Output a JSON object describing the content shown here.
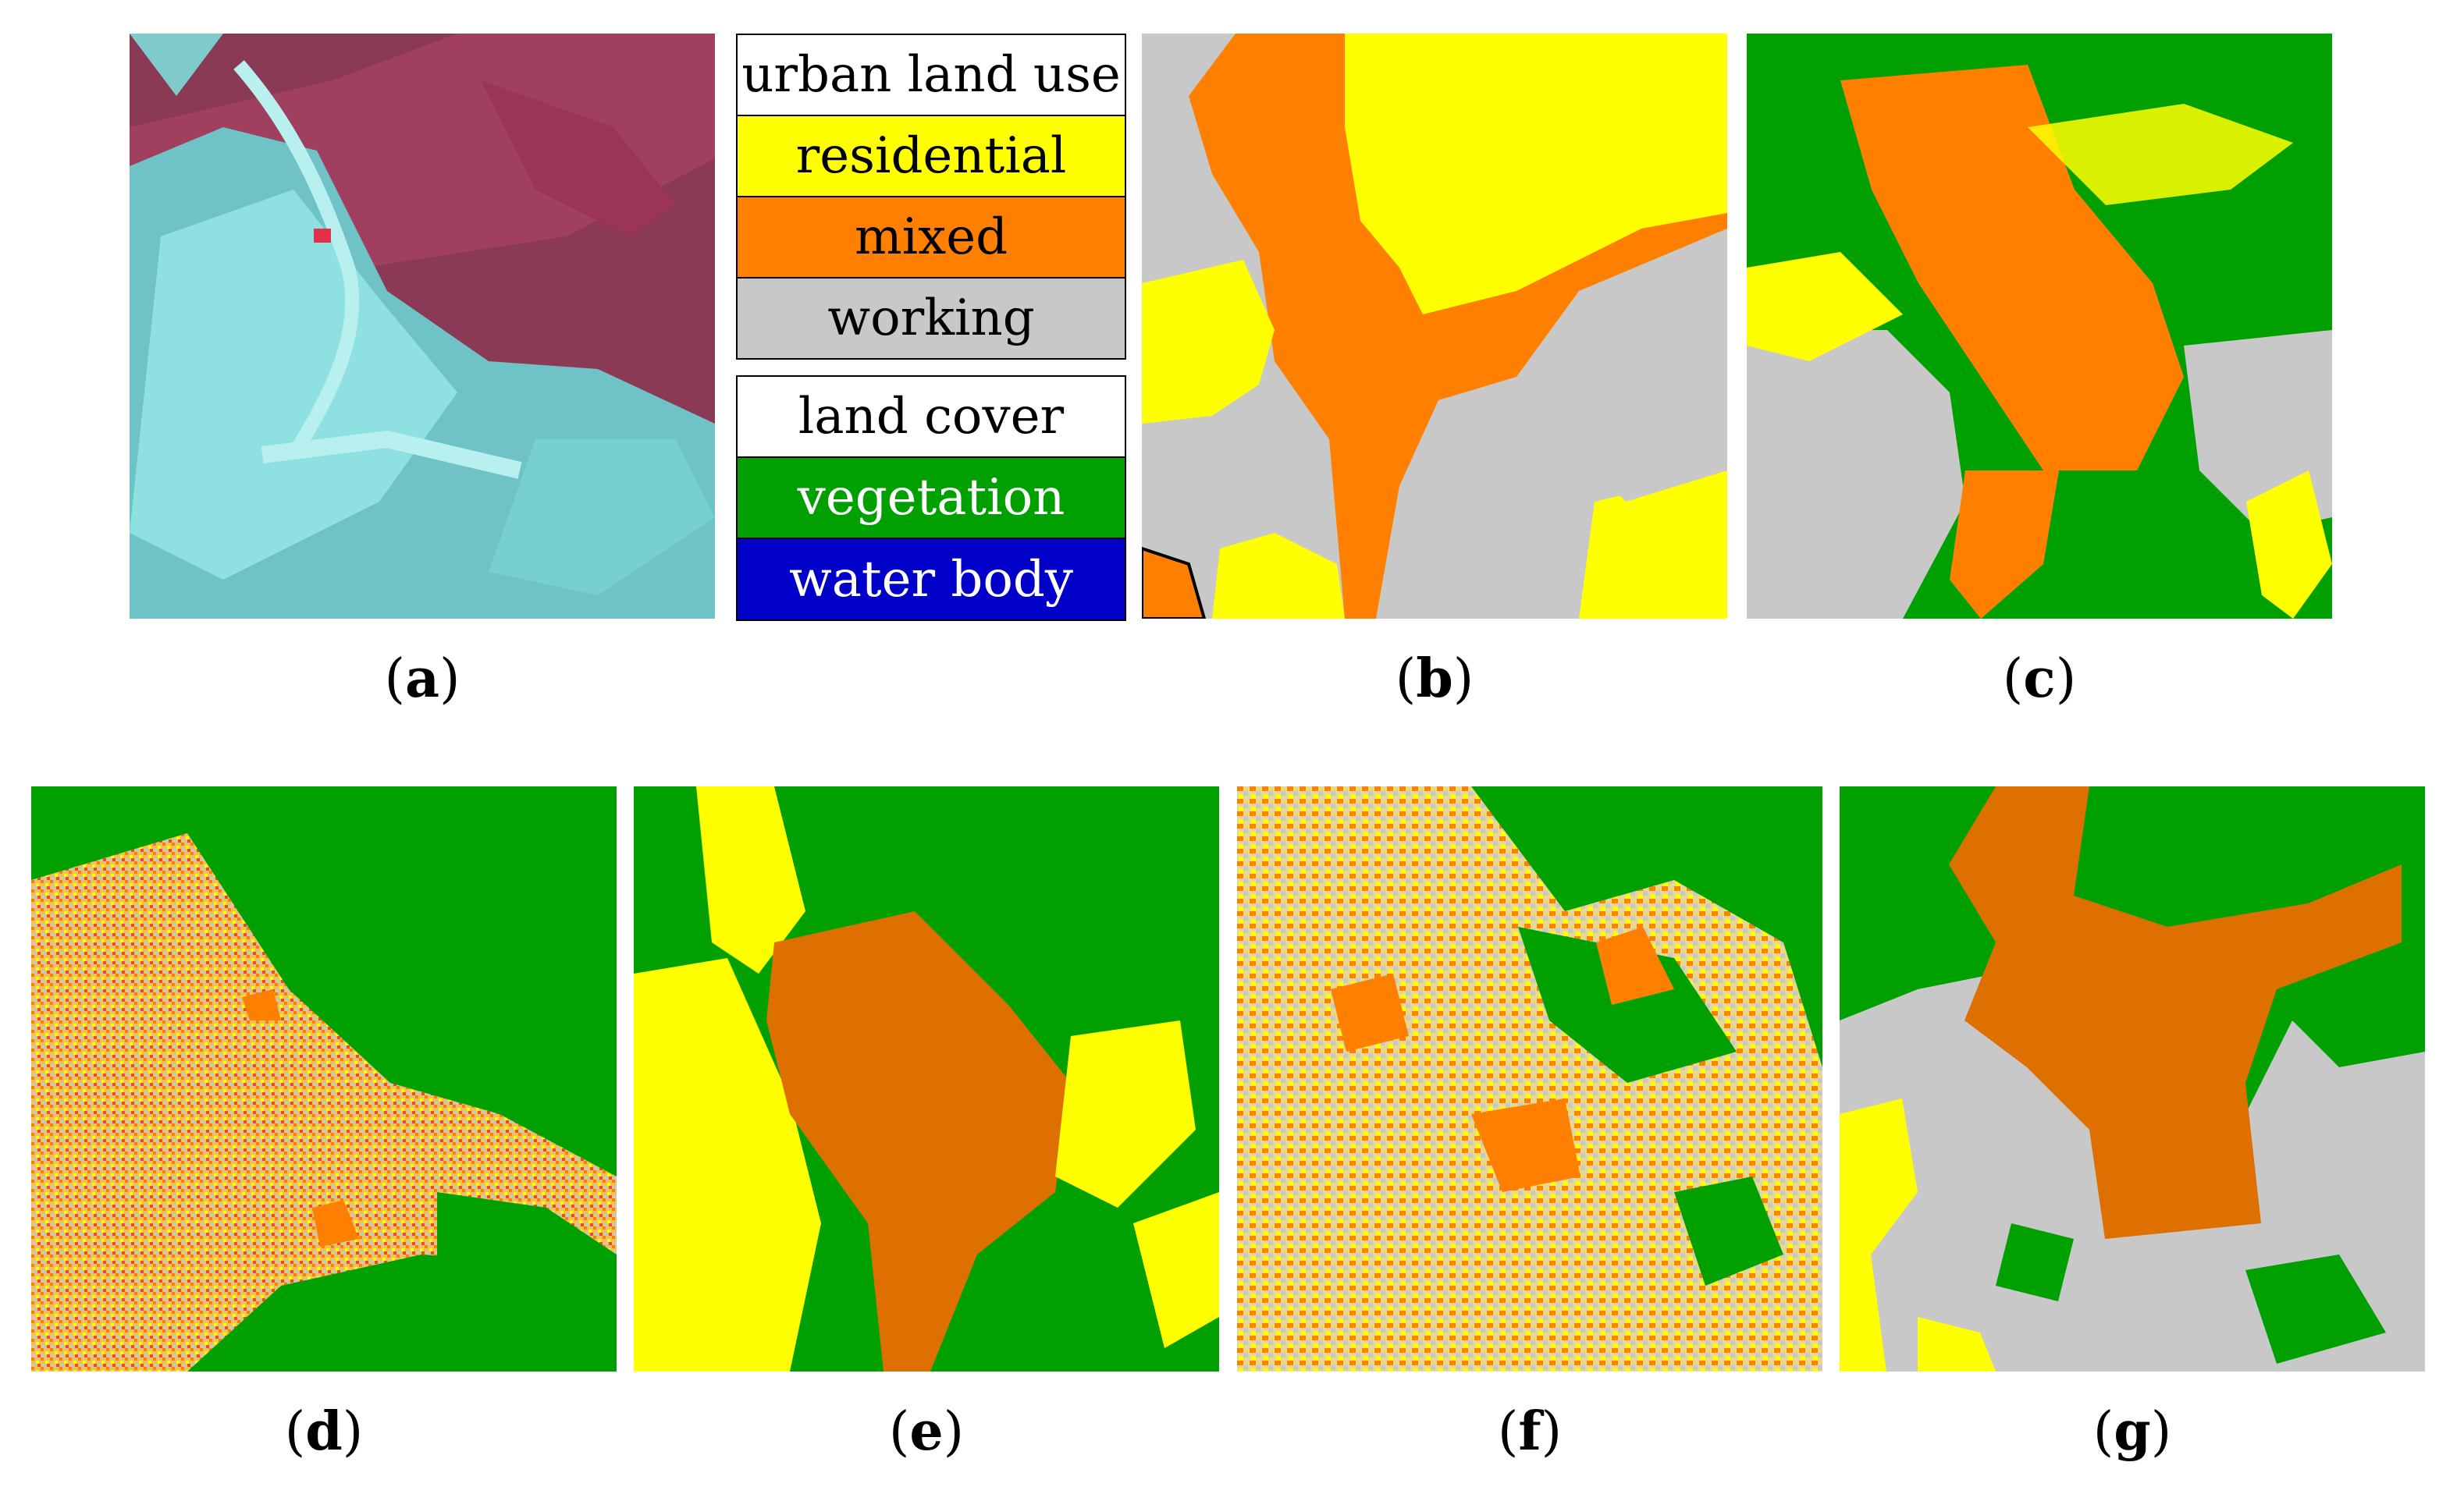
{
  "captions": {
    "a": "a",
    "b": "b",
    "c": "c",
    "d": "d",
    "e": "e",
    "f": "f",
    "g": "g"
  },
  "legend": {
    "land_use": {
      "header": "urban land use",
      "items": [
        {
          "label": "residential",
          "color": "#ffff00",
          "text_color": "#000000"
        },
        {
          "label": "mixed",
          "color": "#ff8000",
          "text_color": "#000000"
        },
        {
          "label": "working",
          "color": "#c8c8c8",
          "text_color": "#000000"
        }
      ]
    },
    "land_cover": {
      "header": "land cover",
      "items": [
        {
          "label": "vegetation",
          "color": "#00a000",
          "text_color": "#ffffff"
        },
        {
          "label": "water body",
          "color": "#0000c8",
          "text_color": "#ffffff"
        }
      ]
    }
  },
  "colors": {
    "residential": "#ffff00",
    "mixed": "#ff8000",
    "mixed_dark": "#dd7000",
    "working": "#c8c8c8",
    "vegetation": "#00a000",
    "water": "#0000c8",
    "satellite_bg": "#8a3a55",
    "satellite_urban": "#7fd6d6"
  }
}
